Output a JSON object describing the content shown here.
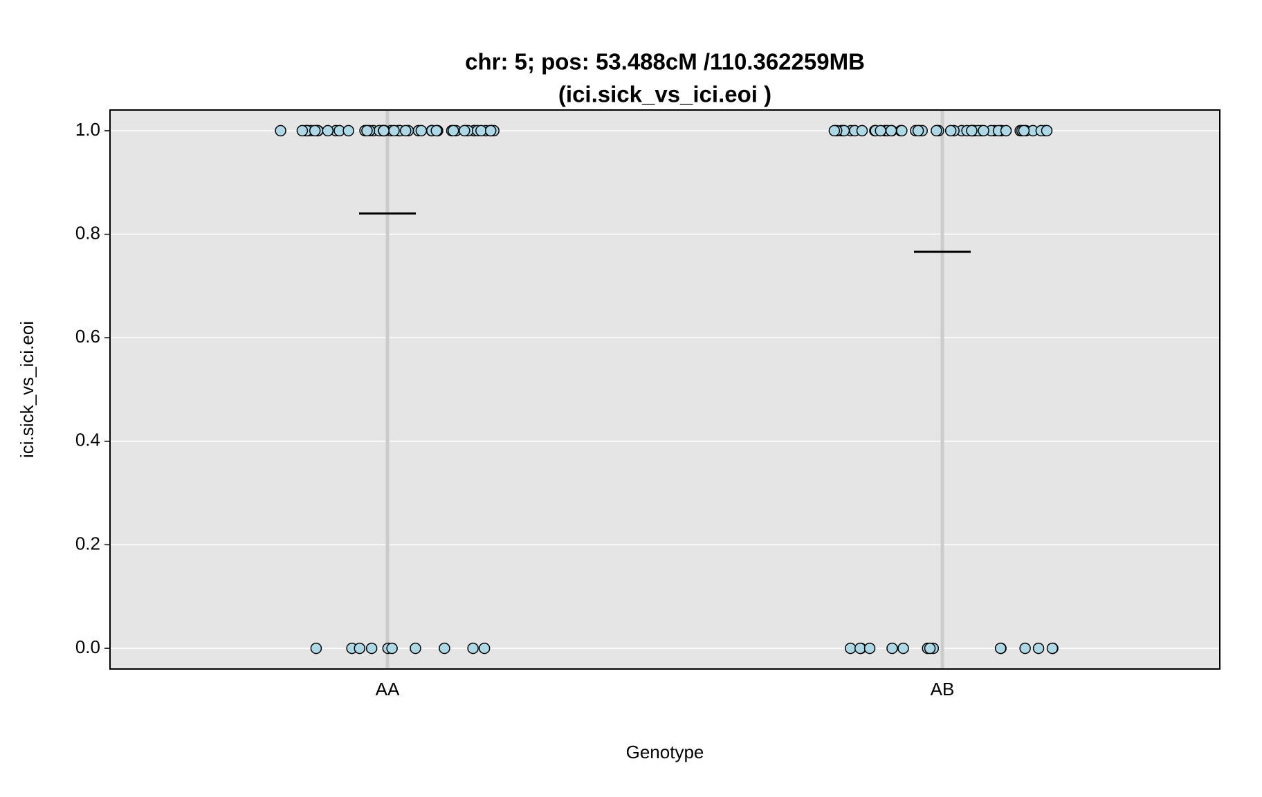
{
  "chart_data": {
    "type": "strip",
    "title": "chr: 5; pos: 53.488cM /110.362259MB",
    "subtitle": "(ici.sick_vs_ici.eoi )",
    "x_label": "Genotype",
    "y_label": "ici.sick_vs_ici.eoi",
    "categories": [
      "AA",
      "AB"
    ],
    "values": [
      [
        1,
        1,
        1,
        1,
        1,
        1,
        1,
        1,
        1,
        1,
        1,
        1,
        1,
        1,
        1,
        1,
        1,
        1,
        1,
        1,
        1,
        1,
        1,
        1,
        1,
        1,
        1,
        1,
        1,
        1,
        1,
        1,
        1,
        1,
        1,
        1,
        1,
        1,
        1,
        1,
        1,
        1,
        1,
        1,
        1,
        1,
        1,
        1,
        1,
        1,
        1,
        1,
        0,
        0,
        0,
        0,
        0,
        0,
        0,
        0,
        0,
        0
      ],
      [
        1,
        1,
        1,
        1,
        1,
        1,
        1,
        1,
        1,
        1,
        1,
        1,
        1,
        1,
        1,
        1,
        1,
        1,
        1,
        1,
        1,
        1,
        1,
        1,
        1,
        1,
        1,
        1,
        1,
        1,
        1,
        1,
        1,
        1,
        1,
        1,
        1,
        1,
        1,
        1,
        1,
        1,
        1,
        1,
        1,
        1,
        1,
        1,
        1,
        0,
        0,
        0,
        0,
        0,
        0,
        0,
        0,
        0,
        0,
        0,
        0,
        0,
        0,
        0
      ]
    ],
    "means": [
      0.84,
      0.766
    ],
    "color": "#add8e6",
    "ylim": [
      -0.04,
      1.04
    ],
    "yticks": [
      {
        "value": 0,
        "label": "0.0"
      },
      0.2,
      0.4,
      0.6,
      0.8,
      {
        "value": 1,
        "label": "1.0"
      }
    ],
    "grid": true
  }
}
